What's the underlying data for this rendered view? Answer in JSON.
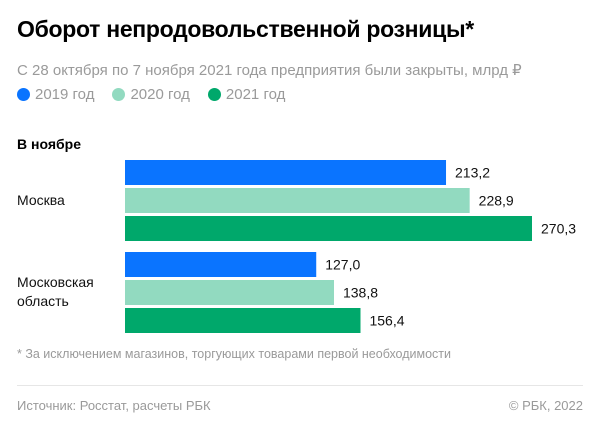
{
  "chart_data": {
    "type": "bar",
    "orientation": "horizontal",
    "title": "Оборот непродовольственной розницы*",
    "subtitle": "С 28 октября по 7 ноября 2021 года предприятия были закрыты, млрд ₽",
    "section_label": "В ноябре",
    "categories": [
      "Москва",
      "Московская область"
    ],
    "category_lines": [
      [
        "Москва"
      ],
      [
        "Московская",
        "область"
      ]
    ],
    "series": [
      {
        "name": "2019 год",
        "color": "#0a74ff",
        "values": [
          213.2,
          127.0
        ],
        "labels": [
          "213,2",
          "127,0"
        ]
      },
      {
        "name": "2020 год",
        "color": "#92dac0",
        "values": [
          228.9,
          138.8
        ],
        "labels": [
          "228,9",
          "138,8"
        ]
      },
      {
        "name": "2021 год",
        "color": "#00a86b",
        "values": [
          270.3,
          156.4
        ],
        "labels": [
          "270,3",
          "156,4"
        ]
      }
    ],
    "xlim": [
      0,
      270.3
    ],
    "legend_position": "top-left",
    "grid": false,
    "footnote": "* За исключением магазинов, торгующих товарами первой необходимости",
    "source": "Источник: Росстат, расчеты РБК",
    "copyright": "© РБК, 2022"
  }
}
